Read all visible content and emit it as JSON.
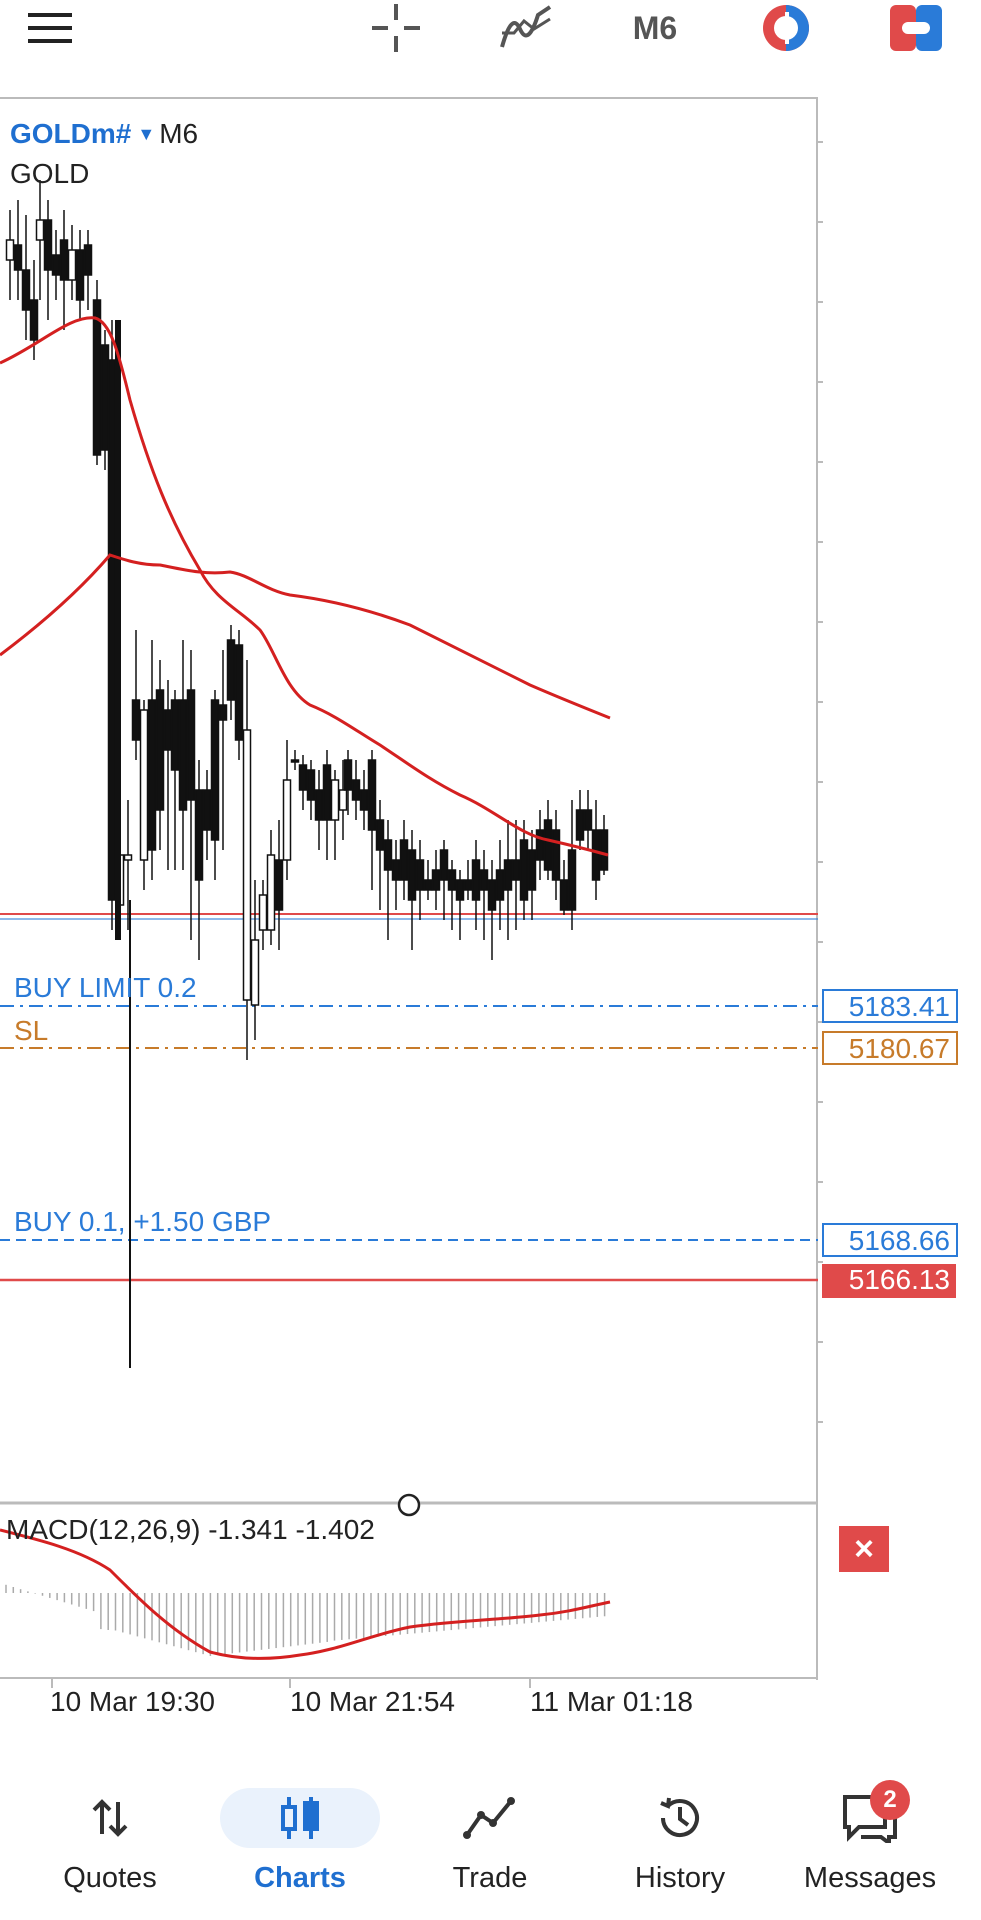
{
  "toolbar": {
    "menu_icon": "hamburger-menu-icon",
    "crosshair_icon": "crosshair-icon",
    "indicators_icon": "indicators-icon",
    "timeframe": "M6",
    "oneclick_icon": "one-click-trading-icon",
    "trade_panel_icon": "trade-panel-icon"
  },
  "chart": {
    "symbol": "GOLDm#",
    "timeframe": "M6",
    "description": "GOLD",
    "orders": [
      {
        "label": "BUY LIMIT 0.2",
        "price": "5183.41",
        "color": "#2a7bd8",
        "style": "dash-dot"
      },
      {
        "label": "SL",
        "price": "5180.67",
        "color": "#c77b2a",
        "style": "dash-dot"
      },
      {
        "label": "BUY 0.1,  +1.50 GBP",
        "price": "5168.66",
        "color": "#2a7bd8",
        "style": "dashed"
      }
    ],
    "bid_price": "5166.13",
    "bid_color": "#e04a4a",
    "ma_color": "#d42020",
    "macd": {
      "label": "MACD(12,26,9) -1.341 -1.402",
      "close_label": "×"
    },
    "time_labels": [
      "10 Mar 19:30",
      "10 Mar 21:54",
      "11 Mar 01:18"
    ]
  },
  "nav": {
    "items": [
      {
        "label": "Quotes",
        "icon": "quotes-arrows-icon"
      },
      {
        "label": "Charts",
        "icon": "charts-candles-icon",
        "active": true
      },
      {
        "label": "Trade",
        "icon": "trade-line-icon"
      },
      {
        "label": "History",
        "icon": "history-clock-icon"
      },
      {
        "label": "Messages",
        "icon": "messages-chat-icon",
        "badge": "2"
      }
    ]
  }
}
